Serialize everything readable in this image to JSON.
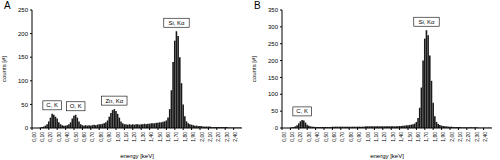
{
  "chart_data": [
    {
      "type": "bar",
      "title": "A",
      "x_label": "energy [keV]",
      "y_label": "counts [#]",
      "color": "#1a1a1a",
      "x": [
        0,
        0.02,
        0.04,
        0.06,
        0.08,
        0.1,
        0.12,
        0.14,
        0.16,
        0.18,
        0.2,
        0.22,
        0.24,
        0.26,
        0.28,
        0.3,
        0.32,
        0.34,
        0.36,
        0.38,
        0.4,
        0.42,
        0.44,
        0.46,
        0.48,
        0.5,
        0.52,
        0.54,
        0.56,
        0.58,
        0.6,
        0.62,
        0.64,
        0.66,
        0.68,
        0.7,
        0.72,
        0.74,
        0.76,
        0.78,
        0.8,
        0.82,
        0.84,
        0.86,
        0.88,
        0.9,
        0.92,
        0.94,
        0.96,
        0.98,
        1,
        1.02,
        1.04,
        1.06,
        1.08,
        1.1,
        1.12,
        1.14,
        1.16,
        1.18,
        1.2,
        1.22,
        1.24,
        1.26,
        1.28,
        1.3,
        1.32,
        1.34,
        1.36,
        1.38,
        1.4,
        1.42,
        1.44,
        1.46,
        1.48,
        1.5,
        1.52,
        1.54,
        1.56,
        1.58,
        1.6,
        1.62,
        1.64,
        1.66,
        1.68,
        1.7,
        1.72,
        1.74,
        1.76,
        1.78,
        1.8,
        1.82,
        1.84,
        1.86,
        1.88,
        1.9,
        1.92,
        1.94,
        1.96,
        1.98,
        2,
        2.02,
        2.04,
        2.06,
        2.08,
        2.1,
        2.12,
        2.14,
        2.16,
        2.18,
        2.2,
        2.22,
        2.24,
        2.26,
        2.28,
        2.3,
        2.32,
        2.34,
        2.36,
        2.38,
        2.4,
        2.42,
        2.44,
        2.46,
        2.48
      ],
      "values": [
        0,
        0,
        0,
        0,
        0,
        1,
        2,
        3,
        5,
        8,
        14,
        22,
        30,
        28,
        24,
        20,
        12,
        8,
        6,
        5,
        5,
        6,
        8,
        12,
        20,
        26,
        28,
        22,
        14,
        8,
        6,
        5,
        6,
        5,
        6,
        5,
        6,
        7,
        6,
        7,
        8,
        8,
        9,
        10,
        12,
        16,
        24,
        32,
        38,
        40,
        36,
        30,
        22,
        14,
        10,
        8,
        8,
        7,
        8,
        7,
        8,
        7,
        8,
        8,
        7,
        8,
        8,
        9,
        8,
        9,
        9,
        10,
        10,
        10,
        11,
        11,
        12,
        12,
        13,
        14,
        16,
        22,
        40,
        80,
        140,
        185,
        205,
        195,
        150,
        95,
        50,
        25,
        14,
        10,
        8,
        7,
        6,
        5,
        5,
        4,
        4,
        4,
        3,
        3,
        3,
        3,
        3,
        2,
        2,
        2,
        2,
        2,
        2,
        2,
        2,
        2,
        2,
        1,
        1,
        1,
        1,
        1,
        1,
        1,
        1
      ],
      "xlim": [
        0,
        2.5
      ],
      "xticks": [
        {
          "value": 0,
          "label": "0,00"
        },
        {
          "value": 0.1,
          "label": "0,10"
        },
        {
          "value": 0.2,
          "label": "0,20"
        },
        {
          "value": 0.3,
          "label": "0,30"
        },
        {
          "value": 0.4,
          "label": "0,40"
        },
        {
          "value": 0.5,
          "label": "0,50"
        },
        {
          "value": 0.6,
          "label": "0,60"
        },
        {
          "value": 0.7,
          "label": "0,70"
        },
        {
          "value": 0.8,
          "label": "0,80"
        },
        {
          "value": 0.9,
          "label": "0,90"
        },
        {
          "value": 1,
          "label": "1,00"
        },
        {
          "value": 1.1,
          "label": "1,10"
        },
        {
          "value": 1.2,
          "label": "1,20"
        },
        {
          "value": 1.3,
          "label": "1,30"
        },
        {
          "value": 1.4,
          "label": "1,40"
        },
        {
          "value": 1.5,
          "label": "1,50"
        },
        {
          "value": 1.6,
          "label": "1,60"
        },
        {
          "value": 1.7,
          "label": "1,70"
        },
        {
          "value": 1.8,
          "label": "1,80"
        },
        {
          "value": 1.9,
          "label": "1,90"
        },
        {
          "value": 2,
          "label": "2,00"
        },
        {
          "value": 2.1,
          "label": "2,10"
        },
        {
          "value": 2.2,
          "label": "2,20"
        },
        {
          "value": 2.3,
          "label": "2,30"
        },
        {
          "value": 2.4,
          "label": "2,40"
        }
      ],
      "ylim": [
        0,
        250
      ],
      "yticks": [
        0,
        50,
        100,
        150,
        200,
        250
      ],
      "grid": false,
      "annotations": [
        {
          "text": "C, K",
          "x": 0.24,
          "y": 30
        },
        {
          "text": "O, K",
          "x": 0.52,
          "y": 28
        },
        {
          "text": "Zn, Kα",
          "x": 0.98,
          "y": 40
        },
        {
          "text": "Si, Kα",
          "x": 1.72,
          "y": 205
        }
      ]
    },
    {
      "type": "bar",
      "title": "B",
      "x_label": "energy [keV]",
      "y_label": "counts [#]",
      "color": "#1a1a1a",
      "x": [
        0,
        0.02,
        0.04,
        0.06,
        0.08,
        0.1,
        0.12,
        0.14,
        0.16,
        0.18,
        0.2,
        0.22,
        0.24,
        0.26,
        0.28,
        0.3,
        0.32,
        0.34,
        0.36,
        0.38,
        0.4,
        0.42,
        0.44,
        0.46,
        0.48,
        0.5,
        0.52,
        0.54,
        0.56,
        0.58,
        0.6,
        0.62,
        0.64,
        0.66,
        0.68,
        0.7,
        0.72,
        0.74,
        0.76,
        0.78,
        0.8,
        0.82,
        0.84,
        0.86,
        0.88,
        0.9,
        0.92,
        0.94,
        0.96,
        0.98,
        1,
        1.02,
        1.04,
        1.06,
        1.08,
        1.1,
        1.12,
        1.14,
        1.16,
        1.18,
        1.2,
        1.22,
        1.24,
        1.26,
        1.28,
        1.3,
        1.32,
        1.34,
        1.36,
        1.38,
        1.4,
        1.42,
        1.44,
        1.46,
        1.48,
        1.5,
        1.52,
        1.54,
        1.56,
        1.58,
        1.6,
        1.62,
        1.64,
        1.66,
        1.68,
        1.7,
        1.72,
        1.74,
        1.76,
        1.78,
        1.8,
        1.82,
        1.84,
        1.86,
        1.88,
        1.9,
        1.92,
        1.94,
        1.96,
        1.98,
        2,
        2.02,
        2.04,
        2.06,
        2.08,
        2.1,
        2.12,
        2.14,
        2.16,
        2.18,
        2.2,
        2.22,
        2.24,
        2.26,
        2.28,
        2.3,
        2.32,
        2.34,
        2.36,
        2.38,
        2.4,
        2.42,
        2.44,
        2.46,
        2.48
      ],
      "values": [
        0,
        0,
        0,
        0,
        0,
        1,
        2,
        3,
        5,
        8,
        14,
        20,
        24,
        22,
        16,
        10,
        7,
        5,
        4,
        4,
        3,
        3,
        3,
        3,
        3,
        3,
        3,
        3,
        3,
        3,
        4,
        4,
        4,
        4,
        4,
        4,
        4,
        4,
        4,
        4,
        4,
        4,
        4,
        4,
        4,
        4,
        4,
        4,
        4,
        4,
        5,
        5,
        5,
        5,
        5,
        5,
        5,
        5,
        5,
        5,
        5,
        5,
        5,
        5,
        5,
        5,
        5,
        5,
        5,
        5,
        6,
        6,
        7,
        7,
        8,
        8,
        9,
        10,
        11,
        13,
        18,
        30,
        60,
        120,
        200,
        265,
        290,
        275,
        215,
        140,
        75,
        35,
        18,
        12,
        9,
        7,
        6,
        5,
        5,
        4,
        4,
        4,
        3,
        3,
        3,
        3,
        3,
        2,
        2,
        2,
        2,
        2,
        2,
        2,
        2,
        2,
        2,
        1,
        1,
        1,
        1,
        1,
        1,
        1,
        1
      ],
      "xlim": [
        0,
        2.5
      ],
      "xticks": [
        {
          "value": 0,
          "label": "0,00"
        },
        {
          "value": 0.1,
          "label": "0,10"
        },
        {
          "value": 0.2,
          "label": "0,20"
        },
        {
          "value": 0.3,
          "label": "0,30"
        },
        {
          "value": 0.4,
          "label": "0,40"
        },
        {
          "value": 0.5,
          "label": "0,50"
        },
        {
          "value": 0.6,
          "label": "0,60"
        },
        {
          "value": 0.7,
          "label": "0,70"
        },
        {
          "value": 0.8,
          "label": "0,80"
        },
        {
          "value": 0.9,
          "label": "0,90"
        },
        {
          "value": 1,
          "label": "1,00"
        },
        {
          "value": 1.1,
          "label": "1,10"
        },
        {
          "value": 1.2,
          "label": "1,20"
        },
        {
          "value": 1.3,
          "label": "1,30"
        },
        {
          "value": 1.4,
          "label": "1,40"
        },
        {
          "value": 1.5,
          "label": "1,50"
        },
        {
          "value": 1.6,
          "label": "1,60"
        },
        {
          "value": 1.7,
          "label": "1,70"
        },
        {
          "value": 1.8,
          "label": "1,80"
        },
        {
          "value": 1.9,
          "label": "1,90"
        },
        {
          "value": 2,
          "label": "2,00"
        },
        {
          "value": 2.1,
          "label": "2,10"
        },
        {
          "value": 2.2,
          "label": "2,20"
        },
        {
          "value": 2.3,
          "label": "2,30"
        },
        {
          "value": 2.4,
          "label": "2,40"
        }
      ],
      "ylim": [
        0,
        350
      ],
      "yticks": [
        0,
        50,
        100,
        150,
        200,
        250,
        300,
        350
      ],
      "grid": false,
      "annotations": [
        {
          "text": "C, K",
          "x": 0.24,
          "y": 24
        },
        {
          "text": "Si, Kα",
          "x": 1.72,
          "y": 290
        }
      ]
    }
  ]
}
